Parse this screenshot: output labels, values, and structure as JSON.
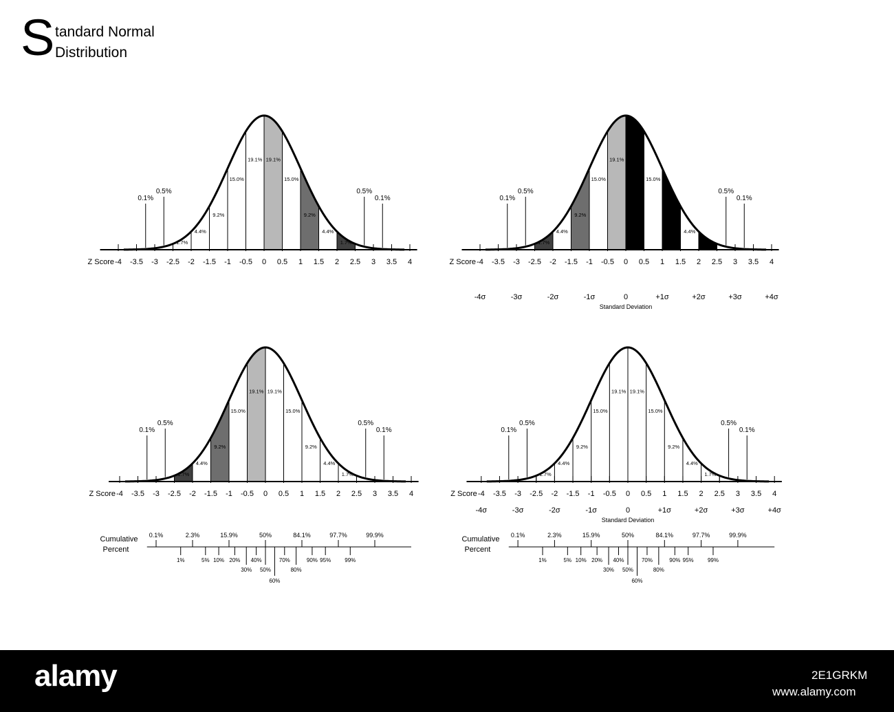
{
  "header": {
    "title_initial": "S",
    "title_line1": "tandard Normal",
    "title_line2": "Distribution"
  },
  "footer": {
    "logo_text": "alamy",
    "image_id": "2E1GRKM",
    "site": "www.alamy.com"
  },
  "chart_data": [
    {
      "type": "area",
      "panel": "top-left",
      "z_label": "Z Score",
      "z_ticks": [
        -4,
        -3.5,
        -3,
        -2.5,
        -2,
        -1.5,
        -1,
        -0.5,
        0,
        0.5,
        1,
        1.5,
        2,
        2.5,
        3,
        3.5,
        4
      ],
      "segments": [
        {
          "from": -3.5,
          "to": -3,
          "color": "#ffffff",
          "label": ""
        },
        {
          "from": -3,
          "to": -2.5,
          "color": "#ffffff",
          "label": ""
        },
        {
          "from": -2.5,
          "to": -2,
          "color": "#ffffff",
          "label": "1.7%"
        },
        {
          "from": -2,
          "to": -1.5,
          "color": "#ffffff",
          "label": "4.4%"
        },
        {
          "from": -1.5,
          "to": -1,
          "color": "#ffffff",
          "label": "9.2%"
        },
        {
          "from": -1,
          "to": -0.5,
          "color": "#ffffff",
          "label": "15.0%"
        },
        {
          "from": -0.5,
          "to": 0,
          "color": "#ffffff",
          "label": "19.1%"
        },
        {
          "from": 0,
          "to": 0.5,
          "color": "#b8b8b8",
          "label": "19.1%"
        },
        {
          "from": 0.5,
          "to": 1,
          "color": "#ffffff",
          "label": "15.0%"
        },
        {
          "from": 1,
          "to": 1.5,
          "color": "#6e6e6e",
          "label": "9.2%"
        },
        {
          "from": 1.5,
          "to": 2,
          "color": "#ffffff",
          "label": "4.4%"
        },
        {
          "from": 2,
          "to": 2.5,
          "color": "#404040",
          "label": "1.7%"
        },
        {
          "from": 2.5,
          "to": 3,
          "color": "#ffffff",
          "label": ""
        },
        {
          "from": 3,
          "to": 3.5,
          "color": "#000000",
          "label": ""
        }
      ],
      "callouts": [
        {
          "z": -3.25,
          "label": "0.1%",
          "level": 1
        },
        {
          "z": -2.75,
          "label": "0.5%",
          "level": 2
        },
        {
          "z": 2.75,
          "label": "0.5%",
          "level": 2
        },
        {
          "z": 3.25,
          "label": "0.1%",
          "level": 1
        }
      ]
    },
    {
      "type": "area",
      "panel": "top-right",
      "z_label": "Z Score",
      "z_ticks": [
        -4,
        -3.5,
        -3,
        -2.5,
        -2,
        -1.5,
        -1,
        -0.5,
        0,
        0.5,
        1,
        1.5,
        2,
        2.5,
        3,
        3.5,
        4
      ],
      "segments": [
        {
          "from": -3.5,
          "to": -3,
          "color": "#000000",
          "label": ""
        },
        {
          "from": -3,
          "to": -2.5,
          "color": "#ffffff",
          "label": ""
        },
        {
          "from": -2.5,
          "to": -2,
          "color": "#404040",
          "label": "1.7%"
        },
        {
          "from": -2,
          "to": -1.5,
          "color": "#ffffff",
          "label": "4.4%"
        },
        {
          "from": -1.5,
          "to": -1,
          "color": "#6e6e6e",
          "label": "9.2%"
        },
        {
          "from": -1,
          "to": -0.5,
          "color": "#ffffff",
          "label": "15.0%"
        },
        {
          "from": -0.5,
          "to": 0,
          "color": "#b8b8b8",
          "label": "19.1%"
        },
        {
          "from": 0,
          "to": 0.5,
          "color": "#000000",
          "label": ""
        },
        {
          "from": 0.5,
          "to": 1,
          "color": "#ffffff",
          "label": "15.0%"
        },
        {
          "from": 1,
          "to": 1.5,
          "color": "#000000",
          "label": ""
        },
        {
          "from": 1.5,
          "to": 2,
          "color": "#ffffff",
          "label": "4.4%"
        },
        {
          "from": 2,
          "to": 2.5,
          "color": "#000000",
          "label": ""
        },
        {
          "from": 2.5,
          "to": 3,
          "color": "#ffffff",
          "label": ""
        },
        {
          "from": 3,
          "to": 3.5,
          "color": "#000000",
          "label": ""
        }
      ],
      "callouts": [
        {
          "z": -3.25,
          "label": "0.1%",
          "level": 1
        },
        {
          "z": -2.75,
          "label": "0.5%",
          "level": 2
        },
        {
          "z": 2.75,
          "label": "0.5%",
          "level": 2
        },
        {
          "z": 3.25,
          "label": "0.1%",
          "level": 1
        }
      ],
      "sigma_ticks": [
        {
          "z": -4,
          "label": "-4σ"
        },
        {
          "z": -3,
          "label": "-3σ"
        },
        {
          "z": -2,
          "label": "-2σ"
        },
        {
          "z": -1,
          "label": "-1σ"
        },
        {
          "z": 0,
          "label": "0"
        },
        {
          "z": 1,
          "label": "+1σ"
        },
        {
          "z": 2,
          "label": "+2σ"
        },
        {
          "z": 3,
          "label": "+3σ"
        },
        {
          "z": 4,
          "label": "+4σ"
        }
      ],
      "sigma_label": "Standard Deviation"
    },
    {
      "type": "area",
      "panel": "bottom-left",
      "z_label": "Z Score",
      "z_ticks": [
        -4,
        -3.5,
        -3,
        -2.5,
        -2,
        -1.5,
        -1,
        -0.5,
        0,
        0.5,
        1,
        1.5,
        2,
        2.5,
        3,
        3.5,
        4
      ],
      "segments": [
        {
          "from": -3.5,
          "to": -3,
          "color": "#000000",
          "label": ""
        },
        {
          "from": -3,
          "to": -2.5,
          "color": "#ffffff",
          "label": ""
        },
        {
          "from": -2.5,
          "to": -2,
          "color": "#404040",
          "label": "1.7%"
        },
        {
          "from": -2,
          "to": -1.5,
          "color": "#ffffff",
          "label": "4.4%"
        },
        {
          "from": -1.5,
          "to": -1,
          "color": "#6e6e6e",
          "label": "9.2%"
        },
        {
          "from": -1,
          "to": -0.5,
          "color": "#ffffff",
          "label": "15.0%"
        },
        {
          "from": -0.5,
          "to": 0,
          "color": "#b8b8b8",
          "label": "19.1%"
        },
        {
          "from": 0,
          "to": 0.5,
          "color": "#ffffff",
          "label": "19.1%"
        },
        {
          "from": 0.5,
          "to": 1,
          "color": "#ffffff",
          "label": "15.0%"
        },
        {
          "from": 1,
          "to": 1.5,
          "color": "#ffffff",
          "label": "9.2%"
        },
        {
          "from": 1.5,
          "to": 2,
          "color": "#ffffff",
          "label": "4.4%"
        },
        {
          "from": 2,
          "to": 2.5,
          "color": "#ffffff",
          "label": "1.7%"
        },
        {
          "from": 2.5,
          "to": 3,
          "color": "#ffffff",
          "label": ""
        },
        {
          "from": 3,
          "to": 3.5,
          "color": "#ffffff",
          "label": ""
        }
      ],
      "callouts": [
        {
          "z": -3.25,
          "label": "0.1%",
          "level": 1
        },
        {
          "z": -2.75,
          "label": "0.5%",
          "level": 2
        },
        {
          "z": 2.75,
          "label": "0.5%",
          "level": 2
        },
        {
          "z": 3.25,
          "label": "0.1%",
          "level": 1
        }
      ],
      "cumulative_label": [
        "Cumulative",
        "Percent"
      ],
      "cumulative_upper": [
        {
          "z": -3,
          "label": "0.1%"
        },
        {
          "z": -2,
          "label": "2.3%"
        },
        {
          "z": -1,
          "label": "15.9%"
        },
        {
          "z": 0,
          "label": "50%"
        },
        {
          "z": 1,
          "label": "84.1%"
        },
        {
          "z": 2,
          "label": "97.7%"
        },
        {
          "z": 3,
          "label": "99.9%"
        }
      ],
      "cumulative_lower": [
        {
          "z": -2.326,
          "label": "1%",
          "level": 1
        },
        {
          "z": -1.645,
          "label": "5%",
          "level": 1
        },
        {
          "z": -1.2816,
          "label": "10%",
          "level": 1
        },
        {
          "z": -0.8416,
          "label": "20%",
          "level": 1
        },
        {
          "z": -0.5244,
          "label": "30%",
          "level": 2
        },
        {
          "z": -0.2533,
          "label": "40%",
          "level": 1
        },
        {
          "z": 0,
          "label": "50%",
          "level": 2
        },
        {
          "z": 0.2533,
          "label": "60%",
          "level": 3
        },
        {
          "z": 0.5244,
          "label": "70%",
          "level": 1
        },
        {
          "z": 0.8416,
          "label": "80%",
          "level": 2
        },
        {
          "z": 1.2816,
          "label": "90%",
          "level": 1
        },
        {
          "z": 1.645,
          "label": "95%",
          "level": 1
        },
        {
          "z": 2.326,
          "label": "99%",
          "level": 1
        }
      ]
    },
    {
      "type": "area",
      "panel": "bottom-right",
      "z_label": "Z Score",
      "z_ticks": [
        -4,
        -3.5,
        -3,
        -2.5,
        -2,
        -1.5,
        -1,
        -0.5,
        0,
        0.5,
        1,
        1.5,
        2,
        2.5,
        3,
        3.5,
        4
      ],
      "segments": [
        {
          "from": -3.5,
          "to": -3,
          "color": "#ffffff",
          "label": ""
        },
        {
          "from": -3,
          "to": -2.5,
          "color": "#ffffff",
          "label": ""
        },
        {
          "from": -2.5,
          "to": -2,
          "color": "#ffffff",
          "label": "1.7%"
        },
        {
          "from": -2,
          "to": -1.5,
          "color": "#ffffff",
          "label": "4.4%"
        },
        {
          "from": -1.5,
          "to": -1,
          "color": "#ffffff",
          "label": "9.2%"
        },
        {
          "from": -1,
          "to": -0.5,
          "color": "#ffffff",
          "label": "15.0%"
        },
        {
          "from": -0.5,
          "to": 0,
          "color": "#ffffff",
          "label": "19.1%"
        },
        {
          "from": 0,
          "to": 0.5,
          "color": "#ffffff",
          "label": "19.1%"
        },
        {
          "from": 0.5,
          "to": 1,
          "color": "#ffffff",
          "label": "15.0%"
        },
        {
          "from": 1,
          "to": 1.5,
          "color": "#ffffff",
          "label": "9.2%"
        },
        {
          "from": 1.5,
          "to": 2,
          "color": "#ffffff",
          "label": "4.4%"
        },
        {
          "from": 2,
          "to": 2.5,
          "color": "#ffffff",
          "label": "1.7%"
        },
        {
          "from": 2.5,
          "to": 3,
          "color": "#ffffff",
          "label": ""
        },
        {
          "from": 3,
          "to": 3.5,
          "color": "#ffffff",
          "label": ""
        }
      ],
      "callouts": [
        {
          "z": -3.25,
          "label": "0.1%",
          "level": 1
        },
        {
          "z": -2.75,
          "label": "0.5%",
          "level": 2
        },
        {
          "z": 2.75,
          "label": "0.5%",
          "level": 2
        },
        {
          "z": 3.25,
          "label": "0.1%",
          "level": 1
        }
      ],
      "sigma_ticks": [
        {
          "z": -4,
          "label": "-4σ"
        },
        {
          "z": -3,
          "label": "-3σ"
        },
        {
          "z": -2,
          "label": "-2σ"
        },
        {
          "z": -1,
          "label": "-1σ"
        },
        {
          "z": 0,
          "label": "0"
        },
        {
          "z": 1,
          "label": "+1σ"
        },
        {
          "z": 2,
          "label": "+2σ"
        },
        {
          "z": 3,
          "label": "+3σ"
        },
        {
          "z": 4,
          "label": "+4σ"
        }
      ],
      "sigma_label": "Standard Deviation",
      "cumulative_label": [
        "Cumulative",
        "Percent"
      ],
      "cumulative_upper": [
        {
          "z": -3,
          "label": "0.1%"
        },
        {
          "z": -2,
          "label": "2.3%"
        },
        {
          "z": -1,
          "label": "15.9%"
        },
        {
          "z": 0,
          "label": "50%"
        },
        {
          "z": 1,
          "label": "84.1%"
        },
        {
          "z": 2,
          "label": "97.7%"
        },
        {
          "z": 3,
          "label": "99.9%"
        }
      ],
      "cumulative_lower": [
        {
          "z": -2.326,
          "label": "1%",
          "level": 1
        },
        {
          "z": -1.645,
          "label": "5%",
          "level": 1
        },
        {
          "z": -1.2816,
          "label": "10%",
          "level": 1
        },
        {
          "z": -0.8416,
          "label": "20%",
          "level": 1
        },
        {
          "z": -0.5244,
          "label": "30%",
          "level": 2
        },
        {
          "z": -0.2533,
          "label": "40%",
          "level": 1
        },
        {
          "z": 0,
          "label": "50%",
          "level": 2
        },
        {
          "z": 0.2533,
          "label": "60%",
          "level": 3
        },
        {
          "z": 0.5244,
          "label": "70%",
          "level": 1
        },
        {
          "z": 0.8416,
          "label": "80%",
          "level": 2
        },
        {
          "z": 1.2816,
          "label": "90%",
          "level": 1
        },
        {
          "z": 1.645,
          "label": "95%",
          "level": 1
        },
        {
          "z": 2.326,
          "label": "99%",
          "level": 1
        }
      ]
    }
  ]
}
